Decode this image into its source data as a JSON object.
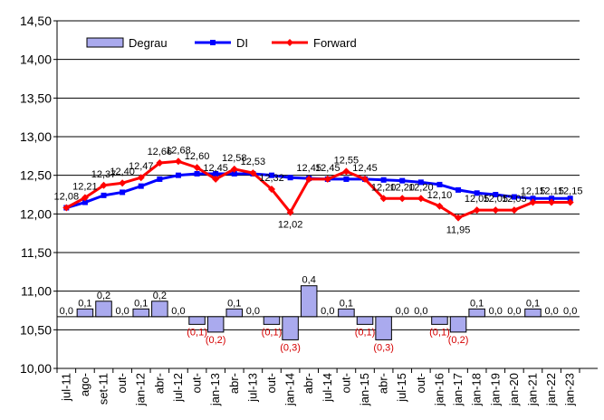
{
  "chart_data": {
    "type": "line",
    "title": "",
    "xlabel": "",
    "ylabel": "",
    "ylim": [
      10.0,
      14.5
    ],
    "yticks": [
      "10,00",
      "10,50",
      "11,00",
      "11,50",
      "12,00",
      "12,50",
      "13,00",
      "13,50",
      "14,00",
      "14,50"
    ],
    "categories": [
      "jul-11",
      "ago-11",
      "set-11",
      "out-11",
      "jan-12",
      "abr-12",
      "jul-12",
      "out-12",
      "jan-13",
      "abr-13",
      "jul-13",
      "out-13",
      "jan-14",
      "abr-14",
      "jul-14",
      "out-14",
      "jan-15",
      "abr-15",
      "jul-15",
      "out-15",
      "jan-16",
      "jan-17",
      "jan-18",
      "jan-19",
      "jan-20",
      "jan-21",
      "jan-22",
      "jan-23"
    ],
    "tick_labels": [
      "jul-11",
      "ago-",
      "set-11",
      "out-",
      "jan-12",
      "abr-",
      "jul-12",
      "out-",
      "jan-13",
      "abr-",
      "jul-13",
      "out-",
      "jan-14",
      "abr-",
      "jul-14",
      "out-",
      "jan-15",
      "abr-",
      "jul-15",
      "out-",
      "jan-16",
      "jan-17",
      "jan-18",
      "jan-19",
      "jan-20",
      "jan-21",
      "jan-22",
      "jan-23"
    ],
    "grid": true,
    "legend_position": "top-left",
    "degrau_baseline": 10.67,
    "series": [
      {
        "name": "Degrau",
        "type": "bar",
        "color": "#aaaaee",
        "values": [
          0.0,
          0.1,
          0.2,
          0.0,
          0.1,
          0.2,
          0.0,
          -0.1,
          -0.2,
          0.1,
          0.0,
          -0.1,
          -0.3,
          0.4,
          0.0,
          0.1,
          -0.1,
          -0.3,
          0.0,
          0.0,
          -0.1,
          -0.2,
          0.1,
          0.0,
          0.0,
          0.1,
          0.0,
          0.0
        ],
        "labels": [
          "0,0",
          "0,1",
          "0,2",
          "0,0",
          "0,1",
          "0,2",
          "0,0",
          "(0,1)",
          "(0,2)",
          "0,1",
          "0,0",
          "(0,1)",
          "(0,3)",
          "0,4",
          "0,0",
          "0,1",
          "(0,1)",
          "(0,3)",
          "0,0",
          "0,0",
          "(0,1)",
          "(0,2)",
          "0,1",
          "0,0",
          "0,0",
          "0,1",
          "0,0",
          "0,0"
        ]
      },
      {
        "name": "DI",
        "type": "line",
        "color": "#0000ff",
        "values": [
          12.08,
          12.15,
          12.24,
          12.28,
          12.36,
          12.45,
          12.5,
          12.52,
          12.52,
          12.52,
          12.52,
          12.5,
          12.47,
          12.46,
          12.45,
          12.45,
          12.45,
          12.44,
          12.43,
          12.41,
          12.38,
          12.31,
          12.27,
          12.25,
          12.22,
          12.2,
          12.2,
          12.2
        ]
      },
      {
        "name": "Forward",
        "type": "line",
        "color": "#ff0000",
        "values": [
          12.08,
          12.21,
          12.37,
          12.4,
          12.47,
          12.66,
          12.68,
          12.6,
          12.45,
          12.58,
          12.53,
          12.32,
          12.02,
          12.45,
          12.45,
          12.55,
          12.45,
          12.2,
          12.2,
          12.2,
          12.1,
          11.95,
          12.05,
          12.05,
          12.05,
          12.15,
          12.15,
          12.15
        ],
        "labels": [
          "12,08",
          "12,21",
          "12,37",
          "12,40",
          "12,47",
          "12,66",
          "12,68",
          "12,60",
          "12,45",
          "12,58",
          "12,53",
          "12,32",
          "12,02",
          "12,45",
          "12,45",
          "12,55",
          "12,45",
          "12,20",
          "12,20",
          "12,20",
          "12,10",
          "11,95",
          "12,05",
          "12,05",
          "12,05",
          "12,15",
          "12,15",
          "12,15"
        ]
      }
    ]
  }
}
